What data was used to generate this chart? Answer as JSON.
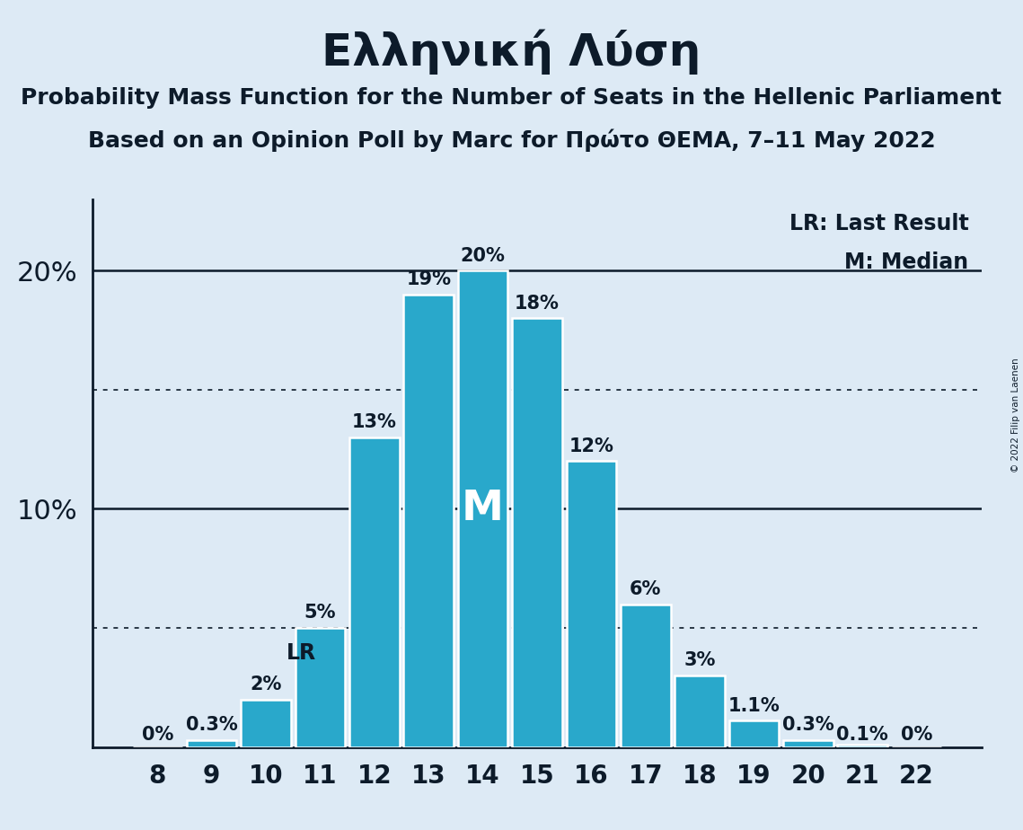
{
  "title": "Ελληνική Λύση",
  "subtitle1": "Probability Mass Function for the Number of Seats in the Hellenic Parliament",
  "subtitle2": "Based on an Opinion Poll by Marc for Πρώτο ΘΕΜΑ, 7–11 May 2022",
  "copyright": "© 2022 Filip van Laenen",
  "categories": [
    8,
    9,
    10,
    11,
    12,
    13,
    14,
    15,
    16,
    17,
    18,
    19,
    20,
    21,
    22
  ],
  "values": [
    0.0,
    0.3,
    2.0,
    5.0,
    13.0,
    19.0,
    20.0,
    18.0,
    12.0,
    6.0,
    3.0,
    1.1,
    0.3,
    0.1,
    0.0
  ],
  "labels": [
    "0%",
    "0.3%",
    "2%",
    "5%",
    "13%",
    "19%",
    "20%",
    "18%",
    "12%",
    "6%",
    "3%",
    "1.1%",
    "0.3%",
    "0.1%",
    "0%"
  ],
  "bar_color": "#29a8cb",
  "bar_edge_color": "#ffffff",
  "background_color": "#ddeaf5",
  "text_color": "#0d1b2a",
  "lr_index": 3,
  "median_index": 6,
  "median_label": "M",
  "lr_label": "LR",
  "dotted_lines": [
    5.0,
    15.0
  ],
  "ylim": [
    0,
    23
  ],
  "legend_lr": "LR: Last Result",
  "legend_m": "M: Median",
  "title_fontsize": 36,
  "subtitle_fontsize": 18,
  "label_fontsize": 15,
  "axis_fontsize": 20,
  "ytick_fontsize": 22,
  "legend_fontsize": 17
}
